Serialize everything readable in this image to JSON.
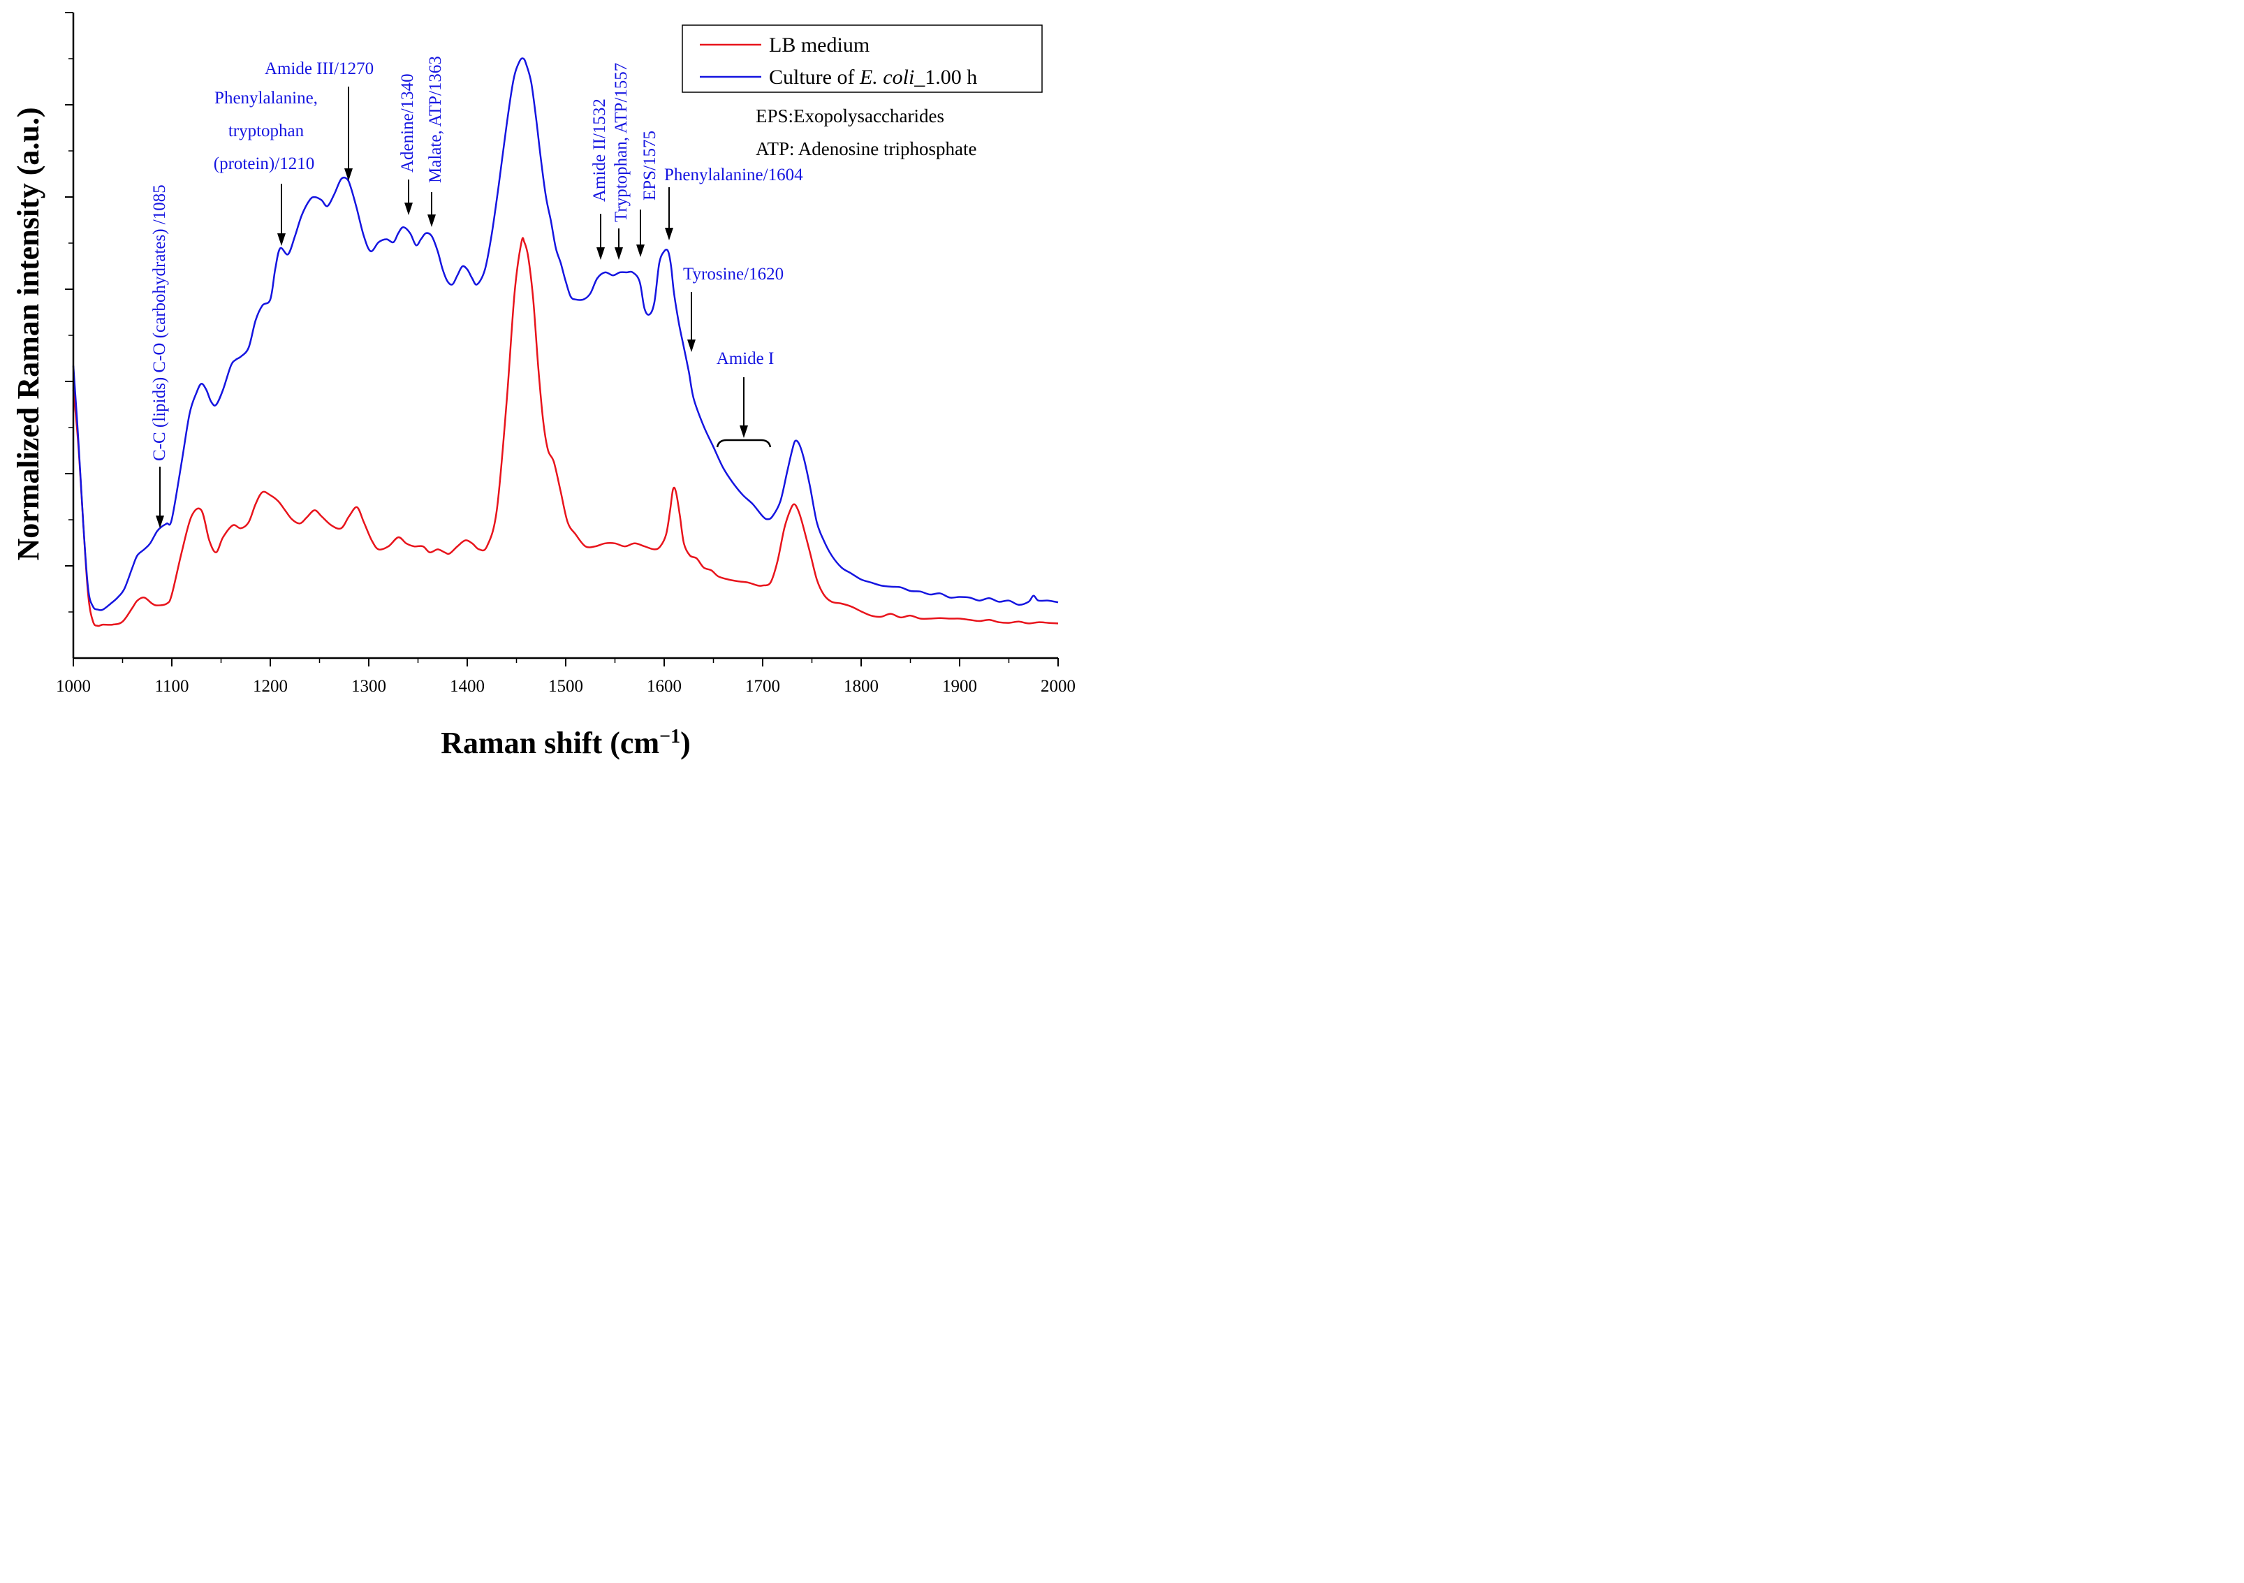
{
  "chart_data": {
    "type": "line",
    "title": "",
    "xlabel": "Raman shift (cm",
    "xlabel_sup": "−1",
    "xlabel_close": ")",
    "ylabel": "Normalized Raman intensity (a.u.)",
    "xlim": [
      1000,
      2000
    ],
    "ylim": [
      0,
      100
    ],
    "x_ticks": [
      "1000",
      "1100",
      "1200",
      "1300",
      "1400",
      "1500",
      "1600",
      "1700",
      "1800",
      "1900",
      "2000"
    ],
    "y_tick_labels_shown": false,
    "grid": false,
    "legend_position": "top-right",
    "colors": {
      "lb": "#e8141c",
      "culture": "#1515e0",
      "annotation": "#1515e0",
      "arrow": "#000000"
    },
    "legend": {
      "lb": "LB medium",
      "culture_prefix": "Culture of ",
      "culture_italic": "E. coli",
      "culture_suffix": "_1.00 h"
    },
    "notes": [
      "EPS:Exopolysaccharides",
      "ATP: Adenosine triphosphate"
    ],
    "annotations": {
      "cc": "C-C (lipids) C-O (carbohydrates) /1085",
      "phe_l1": "Phenylalanine,",
      "phe_l2": "tryptophan",
      "phe_l3": "(protein)/1210",
      "amide3": "Amide III/1270",
      "adenine": "Adenine/1340",
      "malate": "Malate, ATP/1363",
      "amide2": "Amide II/1532",
      "trp": "Tryptophan, ATP/1557",
      "eps": "EPS/1575",
      "phe1604": "Phenylalanine/1604",
      "tyr": "Tyrosine/1620",
      "amide1": "Amide I"
    },
    "series": [
      {
        "name": "LB medium",
        "x": [
          1000,
          1005,
          1010,
          1015,
          1020,
          1025,
          1030,
          1040,
          1050,
          1060,
          1065,
          1072,
          1080,
          1085,
          1095,
          1100,
          1110,
          1120,
          1130,
          1138,
          1145,
          1152,
          1162,
          1170,
          1178,
          1185,
          1192,
          1200,
          1208,
          1215,
          1222,
          1230,
          1237,
          1245,
          1252,
          1262,
          1272,
          1280,
          1288,
          1295,
          1303,
          1310,
          1320,
          1330,
          1338,
          1346,
          1355,
          1362,
          1370,
          1377,
          1382,
          1390,
          1398,
          1405,
          1412,
          1420,
          1430,
          1440,
          1448,
          1455,
          1458,
          1462,
          1467,
          1472,
          1477,
          1482,
          1488,
          1495,
          1502,
          1510,
          1520,
          1530,
          1540,
          1550,
          1560,
          1570,
          1580,
          1590,
          1596,
          1602,
          1606,
          1609,
          1612,
          1616,
          1620,
          1626,
          1633,
          1640,
          1648,
          1655,
          1665,
          1675,
          1685,
          1695,
          1700,
          1708,
          1715,
          1722,
          1728,
          1732,
          1736,
          1740,
          1748,
          1755,
          1762,
          1770,
          1780,
          1790,
          1800,
          1810,
          1820,
          1830,
          1840,
          1850,
          1860,
          1870,
          1880,
          1890,
          1900,
          1910,
          1920,
          1930,
          1940,
          1950,
          1960,
          1970,
          1980,
          1990,
          2000
        ],
        "y": [
          42,
          33,
          20,
          8,
          3.5,
          2.8,
          3.0,
          3.0,
          3.5,
          5.8,
          7.0,
          7.5,
          6.5,
          6.2,
          6.5,
          8.0,
          15.0,
          21.0,
          22.0,
          17.0,
          15.0,
          17.5,
          19.5,
          19.0,
          20.0,
          23.0,
          25.0,
          24.5,
          23.5,
          22.0,
          20.5,
          19.8,
          20.8,
          22.0,
          21.0,
          19.5,
          19.0,
          21.0,
          22.5,
          20.0,
          17.0,
          15.5,
          16.0,
          17.5,
          16.5,
          16.0,
          16.0,
          15.0,
          15.5,
          15.0,
          14.8,
          16.0,
          17.0,
          16.5,
          15.5,
          16.0,
          22.0,
          40.0,
          58.0,
          66.5,
          66.5,
          64.0,
          57.0,
          46.0,
          37.0,
          32.0,
          30.0,
          25.0,
          20.0,
          18.0,
          16.0,
          16.0,
          16.5,
          16.5,
          16.0,
          16.5,
          16.0,
          15.5,
          16.0,
          18.0,
          22.0,
          25.5,
          25.0,
          21.0,
          16.5,
          14.5,
          14.0,
          12.5,
          12.0,
          11.0,
          10.5,
          10.2,
          10.0,
          9.5,
          9.5,
          10.0,
          13.5,
          19.0,
          22.0,
          23.0,
          22.0,
          20.0,
          15.0,
          10.5,
          8.0,
          6.8,
          6.5,
          6.0,
          5.2,
          4.5,
          4.3,
          4.8,
          4.2,
          4.5,
          4.0,
          4.0,
          4.1,
          4.0,
          4.0,
          3.8,
          3.6,
          3.8,
          3.4,
          3.3,
          3.5,
          3.2,
          3.4,
          3.3,
          3.2
        ]
      },
      {
        "name": "Culture of E. coli_1.00 h",
        "x": [
          1000,
          1005,
          1010,
          1015,
          1020,
          1025,
          1030,
          1038,
          1045,
          1052,
          1060,
          1065,
          1072,
          1078,
          1085,
          1090,
          1095,
          1100,
          1110,
          1118,
          1125,
          1130,
          1135,
          1140,
          1145,
          1152,
          1160,
          1165,
          1170,
          1178,
          1185,
          1192,
          1200,
          1205,
          1210,
          1218,
          1225,
          1232,
          1240,
          1245,
          1252,
          1258,
          1265,
          1272,
          1278,
          1282,
          1288,
          1295,
          1302,
          1310,
          1318,
          1325,
          1330,
          1335,
          1342,
          1348,
          1353,
          1358,
          1364,
          1370,
          1375,
          1380,
          1385,
          1390,
          1395,
          1400,
          1405,
          1410,
          1418,
          1425,
          1432,
          1440,
          1447,
          1453,
          1457,
          1460,
          1465,
          1470,
          1475,
          1480,
          1485,
          1490,
          1495,
          1500,
          1505,
          1510,
          1518,
          1525,
          1532,
          1540,
          1548,
          1555,
          1562,
          1568,
          1575,
          1580,
          1585,
          1590,
          1595,
          1600,
          1604,
          1607,
          1610,
          1615,
          1620,
          1625,
          1630,
          1640,
          1650,
          1660,
          1670,
          1680,
          1690,
          1700,
          1705,
          1710,
          1718,
          1725,
          1730,
          1733,
          1737,
          1742,
          1748,
          1755,
          1762,
          1770,
          1780,
          1790,
          1800,
          1810,
          1820,
          1830,
          1840,
          1850,
          1860,
          1870,
          1880,
          1890,
          1900,
          1910,
          1920,
          1930,
          1940,
          1950,
          1960,
          1970,
          1975,
          1980,
          1990,
          2000
        ],
        "y": [
          46,
          34,
          20,
          9,
          6.0,
          5.5,
          5.5,
          6.5,
          7.5,
          9.0,
          12.5,
          14.5,
          15.5,
          16.5,
          18.5,
          19.3,
          19.8,
          20.5,
          30.0,
          38.0,
          41.5,
          43.0,
          42.0,
          40.0,
          39.5,
          42.0,
          46.0,
          47.0,
          47.5,
          49.0,
          53.5,
          56.0,
          57.0,
          62.0,
          65.5,
          64.5,
          67.5,
          71.0,
          73.5,
          74.0,
          73.5,
          72.5,
          74.5,
          77.0,
          77.0,
          75.5,
          72.0,
          67.5,
          65.0,
          66.5,
          67.0,
          66.5,
          68.0,
          69.0,
          68.0,
          66.0,
          67.0,
          68.0,
          67.5,
          65.0,
          62.0,
          60.0,
          59.5,
          61.0,
          62.5,
          62.0,
          60.5,
          59.5,
          62.0,
          68.0,
          76.0,
          86.0,
          93.5,
          96.5,
          97.0,
          96.0,
          93.0,
          87.0,
          80.0,
          74.0,
          70.0,
          65.5,
          63.0,
          60.0,
          57.5,
          57.0,
          57.0,
          58.0,
          60.5,
          61.5,
          61.0,
          61.5,
          61.5,
          61.5,
          60.0,
          55.5,
          54.5,
          56.5,
          63.0,
          65.0,
          65.0,
          62.5,
          58.0,
          53.0,
          49.0,
          45.0,
          40.5,
          36.0,
          32.5,
          29.0,
          26.5,
          24.5,
          23.0,
          21.0,
          20.5,
          21.0,
          23.5,
          28.5,
          32.0,
          33.5,
          33.0,
          30.5,
          26.0,
          20.0,
          17.0,
          14.5,
          12.5,
          11.5,
          10.5,
          10.0,
          9.5,
          9.3,
          9.2,
          8.6,
          8.5,
          8.0,
          8.2,
          7.5,
          7.6,
          7.5,
          7.0,
          7.4,
          6.8,
          7.0,
          6.3,
          6.8,
          7.8,
          7.0,
          7.0,
          6.7
        ]
      }
    ]
  }
}
